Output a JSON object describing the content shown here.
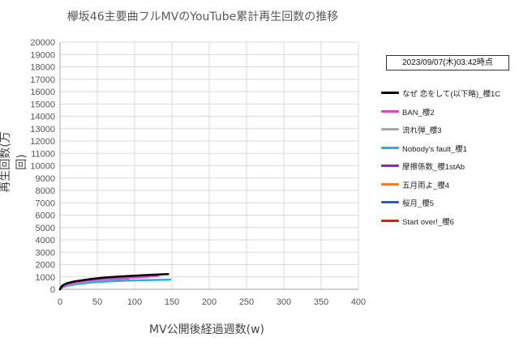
{
  "chart_data": {
    "type": "line",
    "title": "欅坂46主要曲フルMVのYouTube累計再生回数の推移",
    "timestamp": "2023/09/07(木)03:42時点",
    "xlabel": "MV公開後経過週数(w)",
    "ylabel": "再生回数(万回)",
    "xlim": [
      0,
      400
    ],
    "ylim": [
      0,
      20000
    ],
    "xticks": [
      0,
      50,
      100,
      150,
      200,
      250,
      300,
      350,
      400
    ],
    "yticks": [
      0,
      1000,
      2000,
      3000,
      4000,
      5000,
      6000,
      7000,
      8000,
      9000,
      10000,
      11000,
      12000,
      13000,
      14000,
      15000,
      16000,
      17000,
      18000,
      19000,
      20000
    ],
    "grid": true,
    "legend_position": "right",
    "series": [
      {
        "name": "なぜ 恋をして(以下略)_櫻1C",
        "color": "#000000",
        "x": [
          0,
          2,
          5,
          10,
          20,
          40,
          60,
          80,
          100,
          120,
          145
        ],
        "y": [
          0,
          220,
          370,
          500,
          640,
          820,
          950,
          1030,
          1100,
          1160,
          1230
        ]
      },
      {
        "name": "BAN_櫻2",
        "color": "#e83fd1",
        "x": [
          0,
          2,
          5,
          10,
          20,
          40,
          60,
          80,
          100,
          120,
          132
        ],
        "y": [
          0,
          180,
          300,
          420,
          560,
          720,
          840,
          920,
          990,
          1050,
          1080
        ]
      },
      {
        "name": "流れ弾_櫻3",
        "color": "#a6a6a6",
        "x": [
          0,
          2,
          5,
          10,
          20,
          40,
          60,
          80,
          100,
          118
        ],
        "y": [
          0,
          170,
          280,
          390,
          520,
          680,
          790,
          870,
          930,
          980
        ]
      },
      {
        "name": "Nobody's fault_櫻1",
        "color": "#25b0e6",
        "x": [
          0,
          2,
          5,
          10,
          20,
          40,
          60,
          80,
          100,
          120,
          148
        ],
        "y": [
          0,
          130,
          220,
          310,
          410,
          540,
          620,
          680,
          720,
          750,
          780
        ]
      },
      {
        "name": "摩擦係数_櫻1stAb",
        "color": "#9a1ecf",
        "x": [
          0,
          2,
          5,
          10,
          20,
          40,
          60,
          80,
          92
        ],
        "y": [
          0,
          160,
          260,
          360,
          480,
          640,
          760,
          840,
          880
        ]
      },
      {
        "name": "五月雨よ_櫻4",
        "color": "#ed7d31",
        "x": [
          0,
          2,
          5,
          10,
          20,
          40,
          60,
          72
        ],
        "y": [
          0,
          150,
          250,
          350,
          470,
          620,
          720,
          770
        ]
      },
      {
        "name": "桜月_櫻5",
        "color": "#2f5fa5",
        "x": [
          0,
          2,
          5,
          10,
          20,
          30,
          35
        ],
        "y": [
          0,
          120,
          210,
          300,
          400,
          470,
          500
        ]
      },
      {
        "name": "Start over!_櫻6",
        "color": "#e21a1a",
        "x": [
          0,
          2,
          5,
          8,
          12,
          15
        ],
        "y": [
          0,
          130,
          220,
          280,
          330,
          360
        ]
      }
    ]
  }
}
